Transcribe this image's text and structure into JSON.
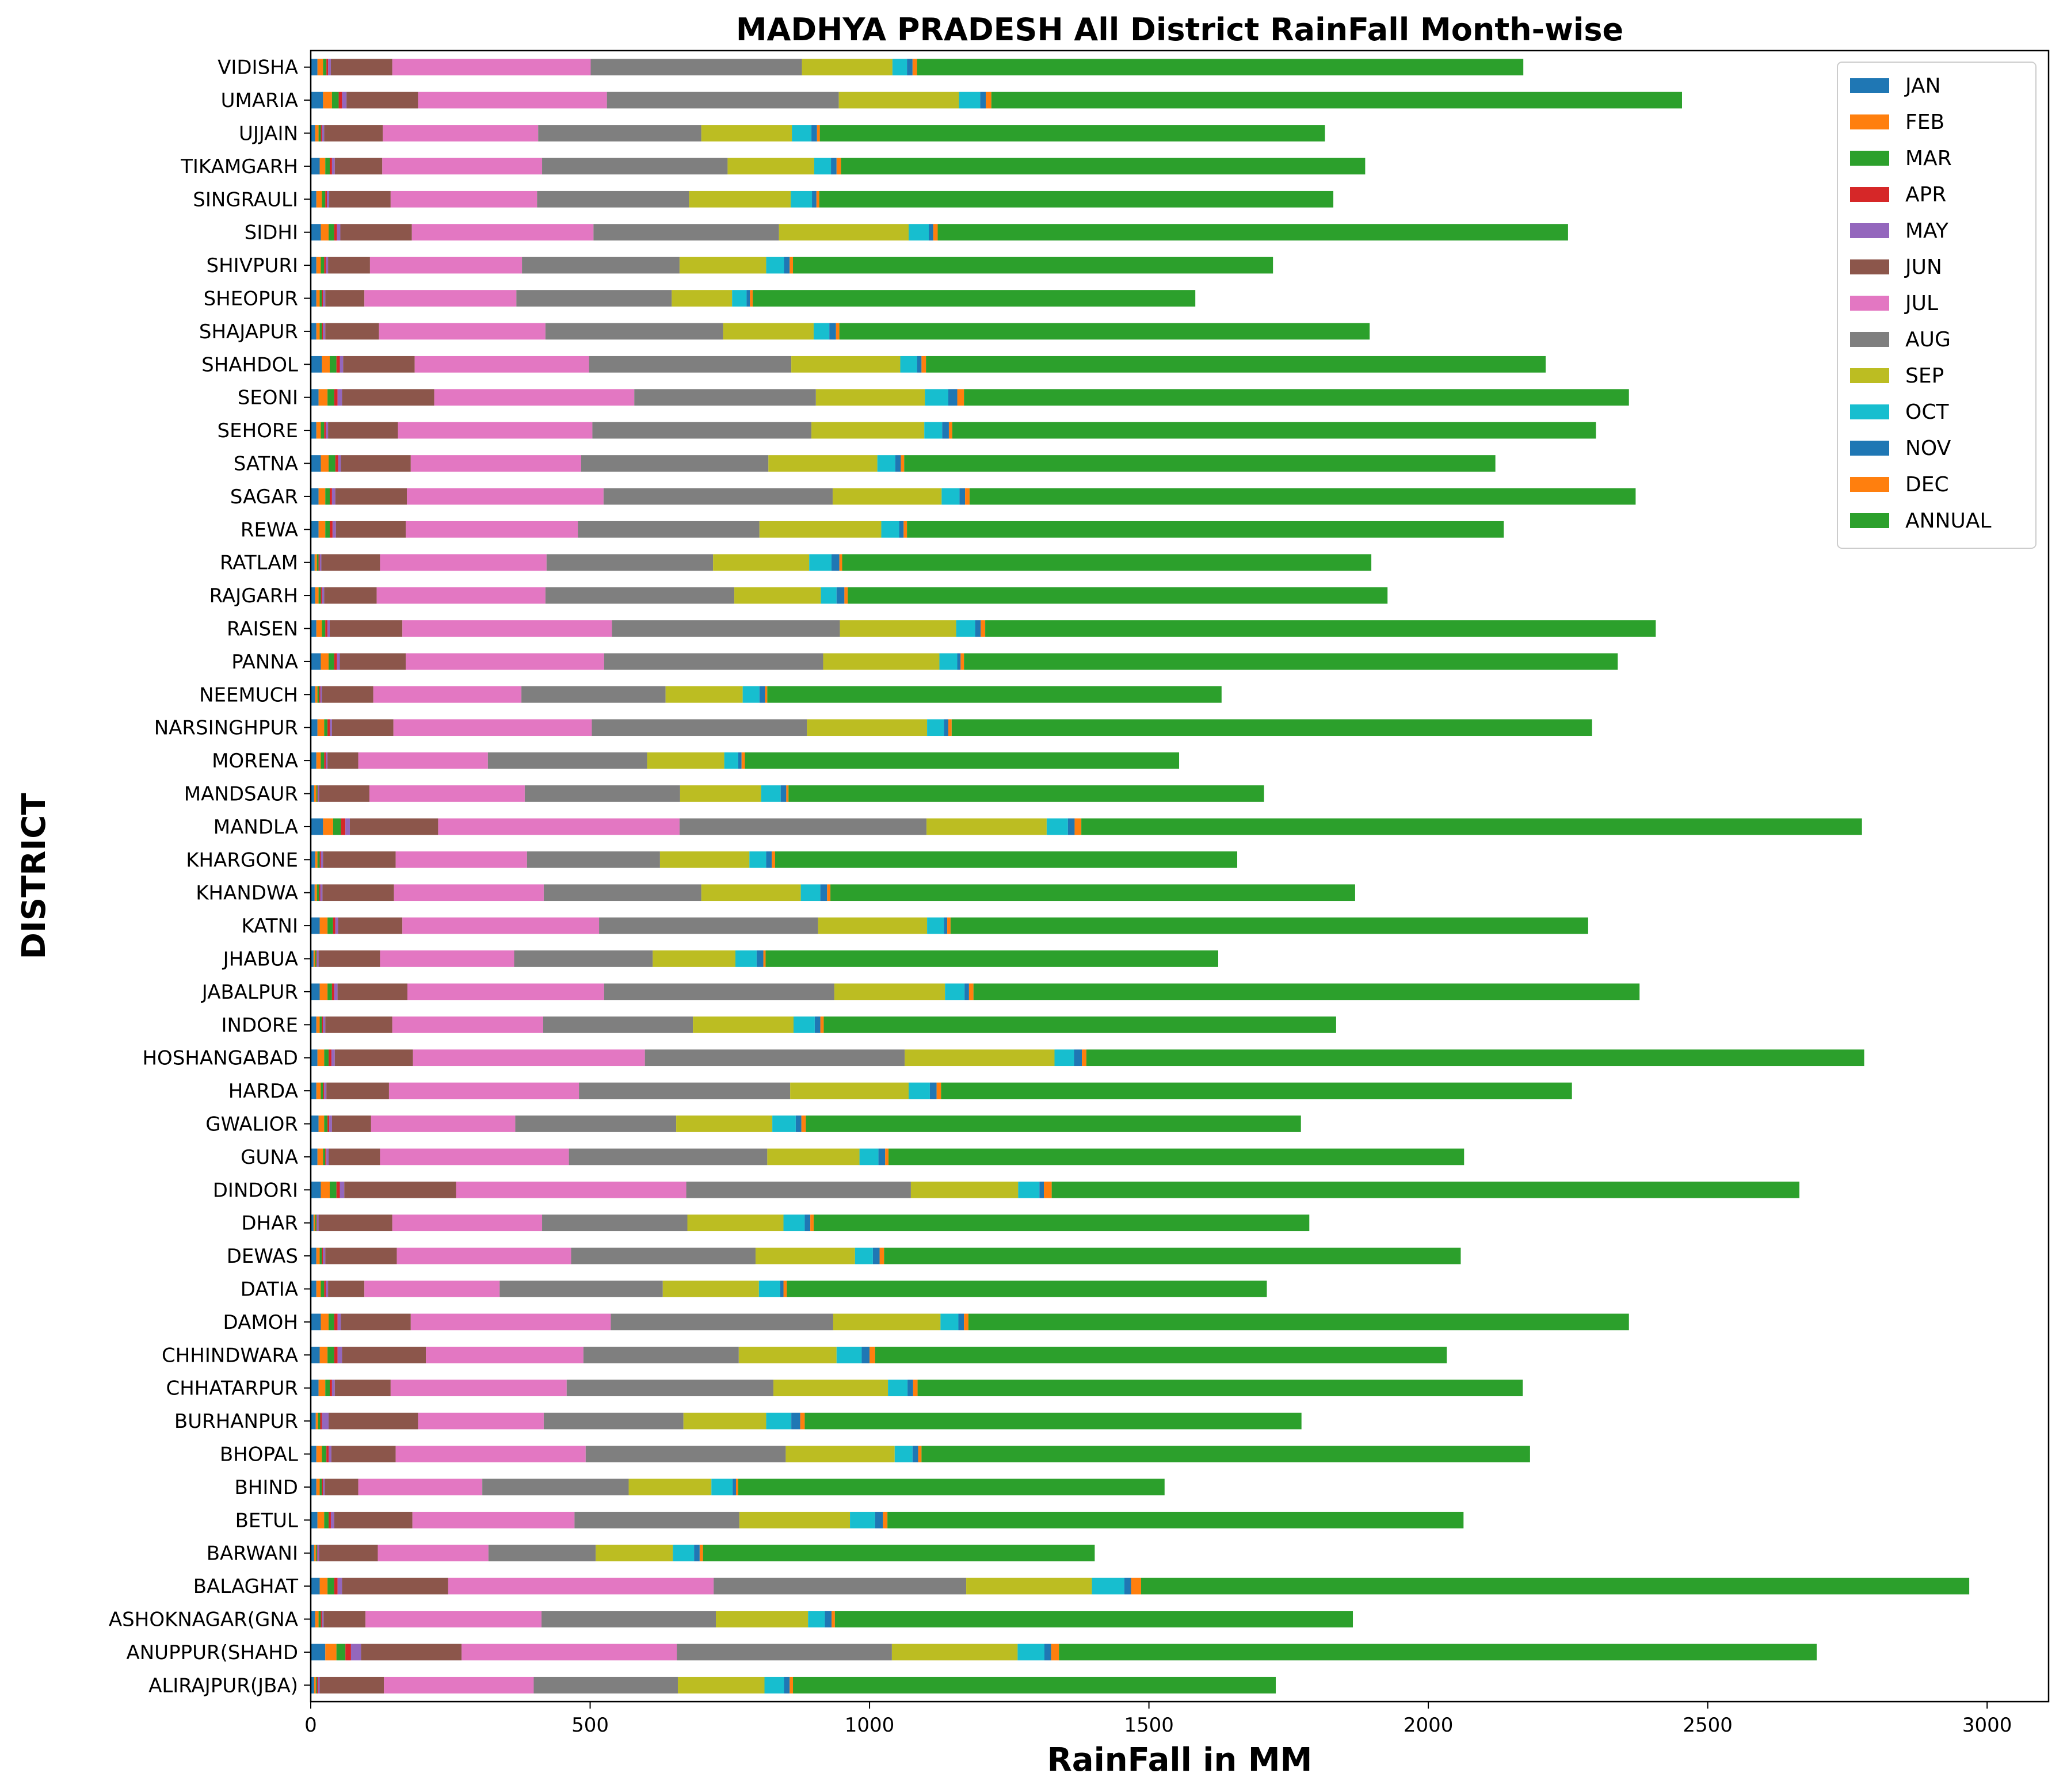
{
  "chart_data": {
    "type": "bar",
    "orientation": "horizontal",
    "stacked": true,
    "title": "MADHYA PRADESH All District RainFall Month-wise",
    "xlabel": "RainFall in MM",
    "ylabel": "DISTRICT",
    "xlim": [
      0,
      3110
    ],
    "xticks": [
      0,
      500,
      1000,
      1500,
      2000,
      2500,
      3000
    ],
    "grid": false,
    "legend_position": "top-right",
    "categories": [
      "VIDISHA",
      "UMARIA",
      "UJJAIN",
      "TIKAMGARH",
      "SINGRAULI",
      "SIDHI",
      "SHIVPURI",
      "SHEOPUR",
      "SHAJAPUR",
      "SHAHDOL",
      "SEONI",
      "SEHORE",
      "SATNA",
      "SAGAR",
      "REWA",
      "RATLAM",
      "RAJGARH",
      "RAISEN",
      "PANNA",
      "NEEMUCH",
      "NARSINGHPUR",
      "MORENA",
      "MANDSAUR",
      "MANDLA",
      "KHARGONE",
      "KHANDWA",
      "KATNI",
      "JHABUA",
      "JABALPUR",
      "INDORE",
      "HOSHANGABAD",
      "HARDA",
      "GWALIOR",
      "GUNA",
      "DINDORI",
      "DHAR",
      "DEWAS",
      "DATIA",
      "DAMOH",
      "CHHINDWARA",
      "CHHATARPUR",
      "BURHANPUR",
      "BHOPAL",
      "BHIND",
      "BETUL",
      "BARWANI",
      "BALAGHAT",
      "ASHOKNAGAR(GNA",
      "ANUPPUR(SHAHD",
      "ALIRAJPUR(JBA)"
    ],
    "series": [
      {
        "name": "JAN",
        "color": "#1f77b4",
        "values": [
          12,
          22,
          8,
          16,
          10,
          18,
          10,
          10,
          10,
          20,
          14,
          10,
          18,
          14,
          14,
          7,
          8,
          10,
          18,
          8,
          12,
          10,
          6,
          22,
          8,
          7,
          16,
          5,
          16,
          10,
          12,
          10,
          14,
          12,
          18,
          5,
          10,
          10,
          18,
          16,
          14,
          9,
          10,
          10,
          12,
          6,
          16,
          8,
          26,
          6
        ]
      },
      {
        "name": "FEB",
        "color": "#ff7f0e",
        "values": [
          10,
          16,
          6,
          10,
          10,
          14,
          8,
          6,
          6,
          14,
          16,
          8,
          14,
          12,
          12,
          4,
          6,
          10,
          14,
          4,
          12,
          8,
          4,
          18,
          4,
          4,
          14,
          3,
          14,
          6,
          12,
          8,
          10,
          10,
          16,
          3,
          6,
          8,
          14,
          14,
          12,
          4,
          10,
          6,
          12,
          3,
          14,
          6,
          20,
          3
        ]
      },
      {
        "name": "MAR",
        "color": "#2ca02c",
        "values": [
          6,
          12,
          4,
          8,
          6,
          10,
          6,
          4,
          4,
          12,
          12,
          6,
          12,
          8,
          8,
          3,
          4,
          6,
          10,
          3,
          6,
          6,
          2,
          14,
          4,
          4,
          10,
          2,
          8,
          4,
          8,
          4,
          6,
          4,
          12,
          2,
          4,
          6,
          10,
          12,
          8,
          4,
          8,
          4,
          8,
          2,
          12,
          4,
          16,
          2
        ]
      },
      {
        "name": "APR",
        "color": "#d62728",
        "values": [
          3,
          6,
          2,
          4,
          3,
          5,
          3,
          2,
          2,
          6,
          6,
          3,
          5,
          4,
          5,
          2,
          2,
          4,
          5,
          2,
          4,
          3,
          1,
          8,
          2,
          2,
          4,
          1,
          4,
          2,
          5,
          2,
          3,
          2,
          6,
          1,
          2,
          3,
          6,
          6,
          4,
          3,
          4,
          2,
          4,
          1,
          6,
          2,
          10,
          2
        ]
      },
      {
        "name": "MAY",
        "color": "#9467bd",
        "values": [
          5,
          8,
          4,
          5,
          4,
          6,
          4,
          4,
          4,
          6,
          8,
          4,
          5,
          6,
          6,
          3,
          4,
          4,
          5,
          3,
          4,
          3,
          2,
          8,
          4,
          4,
          5,
          3,
          6,
          4,
          6,
          4,
          5,
          4,
          8,
          3,
          4,
          4,
          6,
          8,
          5,
          12,
          5,
          3,
          6,
          3,
          8,
          3,
          18,
          3
        ]
      },
      {
        "name": "JUN",
        "color": "#8c564b",
        "values": [
          110,
          128,
          105,
          85,
          110,
          128,
          75,
          70,
          96,
          128,
          165,
          125,
          125,
          128,
          125,
          105,
          94,
          130,
          118,
          92,
          110,
          55,
          90,
          158,
          130,
          128,
          115,
          110,
          125,
          120,
          140,
          112,
          70,
          92,
          200,
          132,
          128,
          65,
          125,
          150,
          100,
          160,
          115,
          60,
          140,
          105,
          190,
          75,
          180,
          115
        ]
      },
      {
        "name": "JUL",
        "color": "#e377c2",
        "values": [
          355,
          338,
          278,
          286,
          262,
          325,
          272,
          272,
          298,
          312,
          358,
          348,
          305,
          352,
          308,
          298,
          302,
          375,
          355,
          265,
          355,
          232,
          278,
          432,
          235,
          268,
          352,
          240,
          352,
          270,
          415,
          340,
          258,
          338,
          412,
          268,
          312,
          242,
          358,
          282,
          315,
          225,
          340,
          222,
          290,
          198,
          475,
          315,
          385,
          268
        ]
      },
      {
        "name": "AUG",
        "color": "#7f7f7f",
        "values": [
          378,
          415,
          292,
          332,
          272,
          332,
          282,
          278,
          318,
          362,
          325,
          392,
          335,
          410,
          325,
          298,
          338,
          408,
          392,
          258,
          385,
          285,
          278,
          442,
          238,
          282,
          392,
          248,
          412,
          268,
          465,
          378,
          288,
          355,
          402,
          260,
          330,
          292,
          398,
          278,
          370,
          250,
          358,
          262,
          295,
          192,
          452,
          312,
          385,
          258
        ]
      },
      {
        "name": "SEP",
        "color": "#bcbd22",
        "values": [
          162,
          215,
          162,
          155,
          182,
          232,
          155,
          108,
          162,
          195,
          195,
          202,
          195,
          195,
          218,
          172,
          155,
          208,
          208,
          138,
          215,
          138,
          145,
          215,
          160,
          178,
          195,
          148,
          198,
          180,
          268,
          212,
          172,
          165,
          192,
          172,
          178,
          172,
          192,
          175,
          205,
          148,
          195,
          148,
          198,
          138,
          225,
          165,
          225,
          155
        ]
      },
      {
        "name": "OCT",
        "color": "#17becf",
        "values": [
          26,
          38,
          35,
          30,
          38,
          36,
          32,
          26,
          28,
          30,
          42,
          32,
          32,
          32,
          32,
          40,
          28,
          34,
          32,
          30,
          30,
          25,
          35,
          38,
          30,
          35,
          30,
          38,
          35,
          38,
          35,
          38,
          42,
          34,
          38,
          38,
          32,
          38,
          32,
          45,
          35,
          45,
          32,
          38,
          45,
          38,
          58,
          30,
          48,
          35
        ]
      },
      {
        "name": "NOV",
        "color": "#1f77b4",
        "values": [
          10,
          10,
          10,
          10,
          8,
          8,
          10,
          6,
          12,
          8,
          16,
          12,
          10,
          10,
          8,
          14,
          14,
          10,
          6,
          10,
          8,
          6,
          10,
          12,
          10,
          12,
          6,
          12,
          8,
          10,
          14,
          12,
          10,
          12,
          8,
          10,
          12,
          6,
          10,
          14,
          10,
          16,
          10,
          6,
          14,
          10,
          12,
          12,
          12,
          10
        ]
      },
      {
        "name": "DEC",
        "color": "#ff7f0e",
        "values": [
          8,
          10,
          5,
          8,
          5,
          8,
          6,
          5,
          6,
          8,
          12,
          6,
          6,
          8,
          6,
          5,
          6,
          8,
          6,
          4,
          6,
          6,
          4,
          12,
          6,
          6,
          6,
          4,
          8,
          6,
          8,
          8,
          8,
          6,
          14,
          6,
          8,
          6,
          8,
          10,
          8,
          8,
          6,
          4,
          8,
          6,
          18,
          6,
          14,
          6
        ]
      },
      {
        "name": "ANNUAL",
        "color": "#2ca02c",
        "values": [
          1085,
          1236,
          904,
          938,
          920,
          1128,
          859,
          792,
          949,
          1109,
          1190,
          1152,
          1058,
          1192,
          1068,
          947,
          966,
          1200,
          1170,
          813,
          1146,
          777,
          851,
          1397,
          827,
          939,
          1141,
          810,
          1192,
          917,
          1392,
          1129,
          886,
          1030,
          1338,
          887,
          1032,
          859,
          1182,
          1023,
          1083,
          889,
          1089,
          763,
          1031,
          701,
          1482,
          927,
          1356,
          864
        ]
      }
    ]
  }
}
